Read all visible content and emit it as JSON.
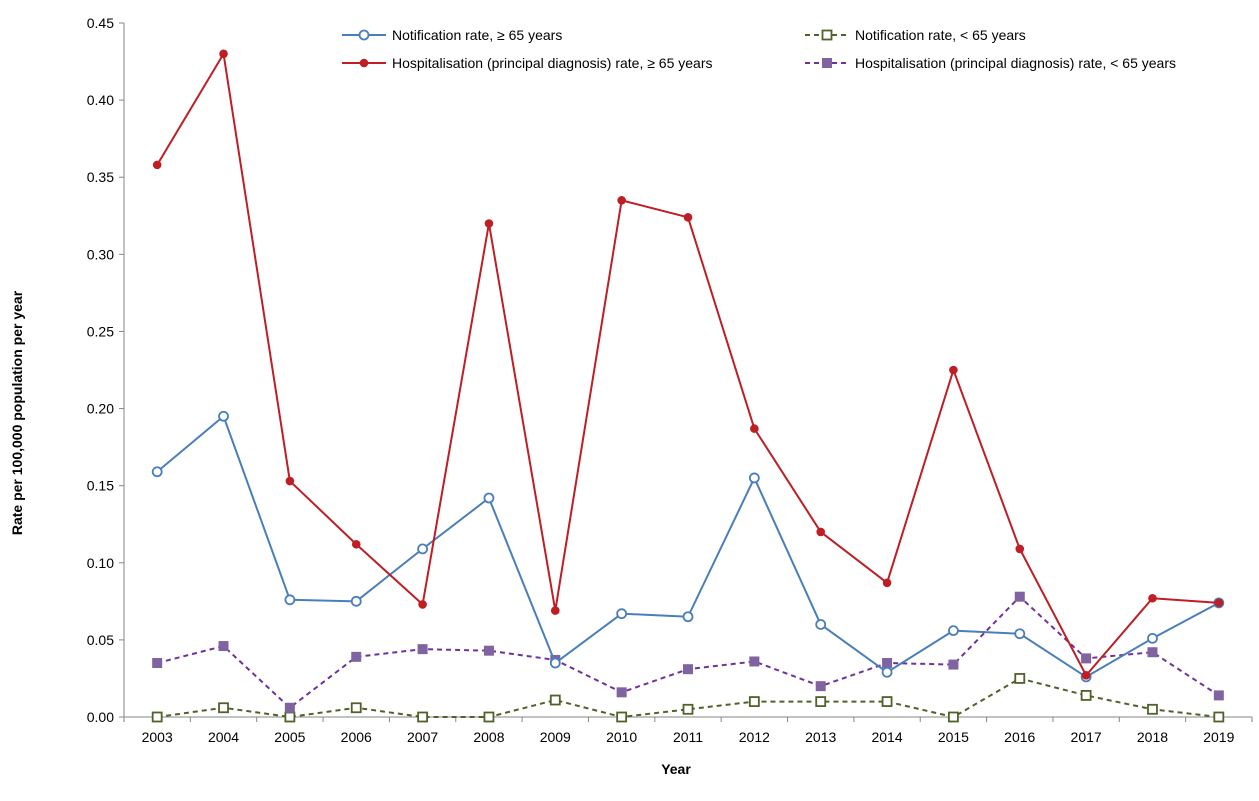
{
  "chart_data": {
    "type": "line",
    "xlabel": "Year",
    "ylabel": "Rate per 100,000 population per year",
    "x": [
      "2003",
      "2004",
      "2005",
      "2006",
      "2007",
      "2008",
      "2009",
      "2010",
      "2011",
      "2012",
      "2013",
      "2014",
      "2015",
      "2016",
      "2017",
      "2018",
      "2019"
    ],
    "ylim": [
      0,
      0.45
    ],
    "yticks": [
      "0.00",
      "0.05",
      "0.10",
      "0.15",
      "0.20",
      "0.25",
      "0.30",
      "0.35",
      "0.40",
      "0.45"
    ],
    "grid": false,
    "legend_position": "top",
    "series": [
      {
        "name": "Notification rate, ≥ 65 years",
        "color": "#4a7ebb",
        "line_style": "solid",
        "marker": "open-circle",
        "values": [
          0.159,
          0.195,
          0.076,
          0.075,
          0.109,
          0.142,
          0.035,
          0.067,
          0.065,
          0.155,
          0.06,
          0.029,
          0.056,
          0.054,
          0.026,
          0.051,
          0.074
        ]
      },
      {
        "name": "Notification rate, < 65 years",
        "color": "#4f6228",
        "line_style": "dashed",
        "marker": "open-square",
        "values": [
          0.0,
          0.006,
          0.0,
          0.006,
          0.0,
          0.0,
          0.011,
          0.0,
          0.005,
          0.01,
          0.01,
          0.01,
          0.0,
          0.025,
          0.014,
          0.005,
          0.0
        ]
      },
      {
        "name": "Hospitalisation (principal diagnosis) rate, ≥ 65 years",
        "color": "#be1e24",
        "line_style": "solid",
        "marker": "filled-circle",
        "values": [
          0.358,
          0.43,
          0.153,
          0.112,
          0.073,
          0.32,
          0.069,
          0.335,
          0.324,
          0.187,
          0.12,
          0.087,
          0.225,
          0.109,
          0.027,
          0.077,
          0.074
        ]
      },
      {
        "name": "Hospitalisation (principal diagnosis) rate, < 65 years",
        "color": "#7030a0",
        "marker_color": "#8064a2",
        "line_style": "dashed",
        "marker": "filled-square",
        "values": [
          0.035,
          0.046,
          0.006,
          0.039,
          0.044,
          0.043,
          0.037,
          0.016,
          0.031,
          0.036,
          0.02,
          0.035,
          0.034,
          0.078,
          0.038,
          0.042,
          0.014
        ]
      }
    ]
  }
}
